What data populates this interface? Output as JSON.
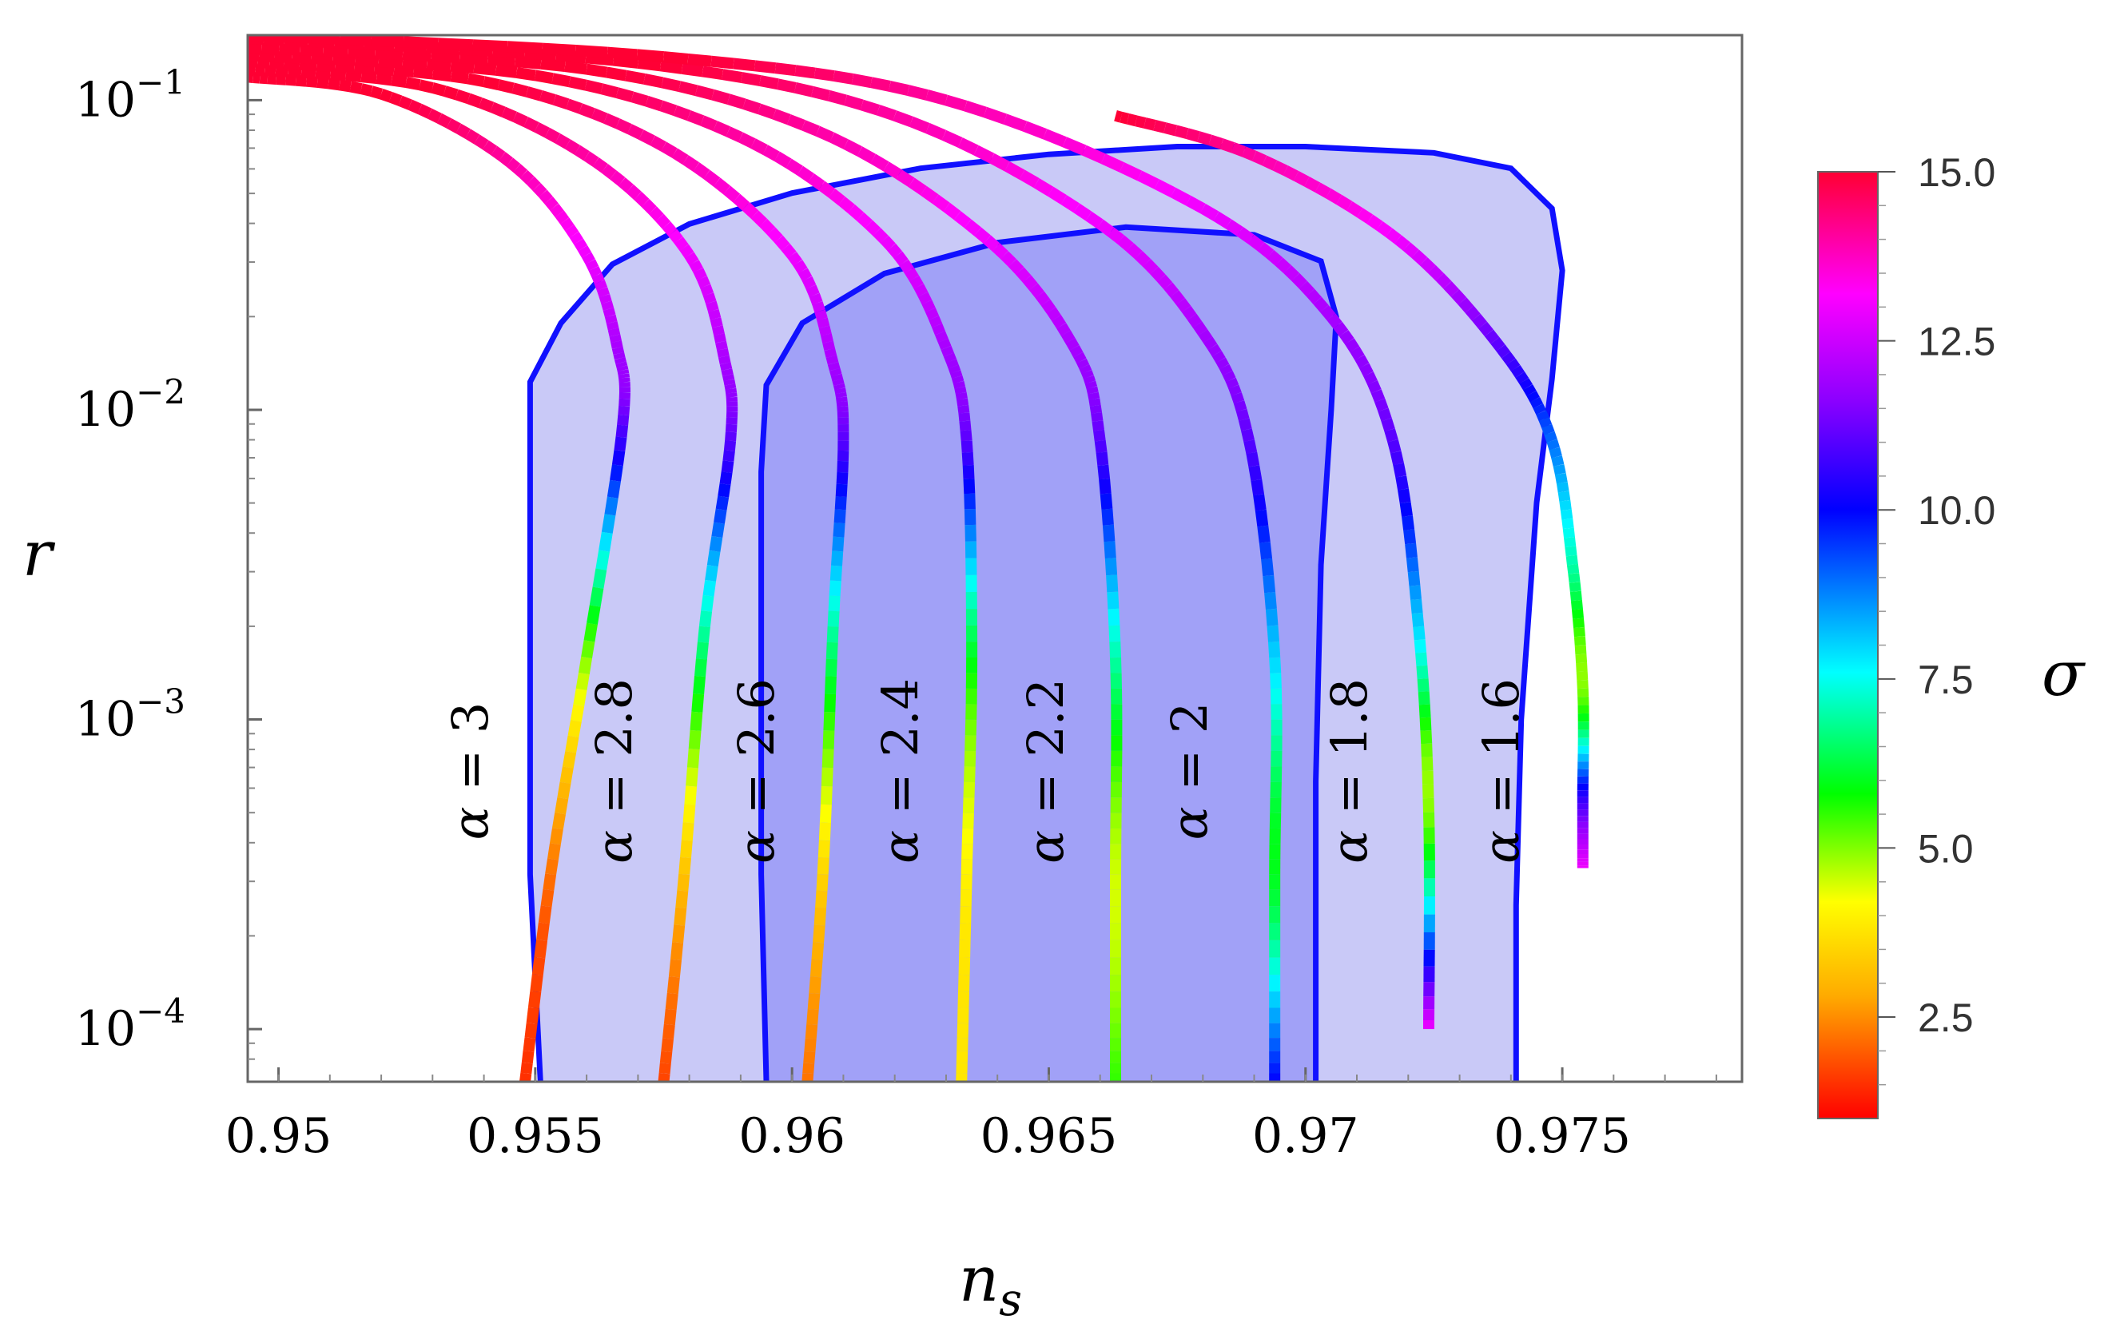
{
  "chart_data": {
    "type": "line",
    "xlabel": "n",
    "xlabel_sub": "s",
    "ylabel": "r",
    "xlim": [
      0.9494,
      0.9785
    ],
    "ylim_log10": [
      -4.17,
      -0.79
    ],
    "y_scale": "log",
    "x_ticks": [
      {
        "value": 0.95,
        "label": "0.95"
      },
      {
        "value": 0.955,
        "label": "0.955"
      },
      {
        "value": 0.96,
        "label": "0.96"
      },
      {
        "value": 0.965,
        "label": "0.965"
      },
      {
        "value": 0.97,
        "label": "0.97"
      },
      {
        "value": 0.975,
        "label": "0.975"
      }
    ],
    "y_ticks": [
      {
        "exp": -1,
        "base": "10",
        "sup": "−1"
      },
      {
        "exp": -2,
        "base": "10",
        "sup": "−2"
      },
      {
        "exp": -3,
        "base": "10",
        "sup": "−3"
      },
      {
        "exp": -4,
        "base": "10",
        "sup": "−4"
      }
    ],
    "contours": [
      {
        "name": "outer",
        "fill": "#c9c9f7",
        "stroke": "#1010ff",
        "points": [
          [
            0.9551,
            -4.17
          ],
          [
            0.9549,
            -3.5
          ],
          [
            0.9549,
            -2.8
          ],
          [
            0.9549,
            -2.2
          ],
          [
            0.9549,
            -1.91
          ],
          [
            0.9555,
            -1.72
          ],
          [
            0.9565,
            -1.53
          ],
          [
            0.958,
            -1.4
          ],
          [
            0.96,
            -1.3
          ],
          [
            0.9625,
            -1.22
          ],
          [
            0.965,
            -1.175
          ],
          [
            0.9675,
            -1.15
          ],
          [
            0.97,
            -1.15
          ],
          [
            0.9725,
            -1.17
          ],
          [
            0.974,
            -1.22
          ],
          [
            0.9748,
            -1.35
          ],
          [
            0.975,
            -1.55
          ],
          [
            0.9748,
            -1.9
          ],
          [
            0.9745,
            -2.3
          ],
          [
            0.9742,
            -3.0
          ],
          [
            0.9741,
            -3.6
          ],
          [
            0.9741,
            -4.17
          ]
        ]
      },
      {
        "name": "inner",
        "fill": "#a1a1f7",
        "stroke": "#1010ff",
        "points": [
          [
            0.9595,
            -4.17
          ],
          [
            0.9594,
            -3.5
          ],
          [
            0.9594,
            -2.8
          ],
          [
            0.9594,
            -2.2
          ],
          [
            0.9595,
            -1.92
          ],
          [
            0.9602,
            -1.72
          ],
          [
            0.9618,
            -1.56
          ],
          [
            0.964,
            -1.46
          ],
          [
            0.9665,
            -1.41
          ],
          [
            0.969,
            -1.435
          ],
          [
            0.9703,
            -1.52
          ],
          [
            0.9706,
            -1.7
          ],
          [
            0.9705,
            -2.0
          ],
          [
            0.9703,
            -2.5
          ],
          [
            0.9702,
            -3.2
          ],
          [
            0.9702,
            -4.17
          ]
        ]
      }
    ],
    "sigma_range": [
      1,
      15
    ],
    "series": [
      {
        "label_prefix": "α",
        "label_value": "3",
        "points": [
          [
            0.9494,
            -0.925,
            15
          ],
          [
            0.952,
            -0.98,
            15
          ],
          [
            0.9545,
            -1.2,
            14
          ],
          [
            0.956,
            -1.5,
            13
          ],
          [
            0.9566,
            -1.8,
            12
          ],
          [
            0.9567,
            -2.05,
            11
          ],
          [
            0.956,
            -2.8,
            5
          ],
          [
            0.9553,
            -3.5,
            2.2
          ],
          [
            0.9548,
            -4.17,
            1.5
          ]
        ]
      },
      {
        "label_prefix": "α",
        "label_value": "2.8",
        "points": [
          [
            0.9494,
            -0.9,
            15
          ],
          [
            0.953,
            -0.96,
            15
          ],
          [
            0.956,
            -1.18,
            14
          ],
          [
            0.958,
            -1.5,
            13
          ],
          [
            0.9587,
            -1.85,
            12
          ],
          [
            0.9588,
            -2.1,
            11
          ],
          [
            0.9583,
            -2.7,
            7
          ],
          [
            0.9579,
            -3.5,
            3.2
          ],
          [
            0.9575,
            -4.17,
            1.7
          ]
        ]
      },
      {
        "label_prefix": "α",
        "label_value": "2.6",
        "points": [
          [
            0.9494,
            -0.875,
            15
          ],
          [
            0.954,
            -0.94,
            15
          ],
          [
            0.9575,
            -1.15,
            14
          ],
          [
            0.96,
            -1.5,
            13
          ],
          [
            0.9608,
            -1.85,
            12
          ],
          [
            0.961,
            -2.1,
            11
          ],
          [
            0.9608,
            -2.7,
            7
          ],
          [
            0.9606,
            -3.5,
            3.5
          ],
          [
            0.9603,
            -4.17,
            2.2
          ]
        ]
      },
      {
        "label_prefix": "α",
        "label_value": "2.4",
        "points": [
          [
            0.9494,
            -0.855,
            15
          ],
          [
            0.955,
            -0.92,
            15
          ],
          [
            0.959,
            -1.12,
            14
          ],
          [
            0.9618,
            -1.45,
            13
          ],
          [
            0.963,
            -1.8,
            12
          ],
          [
            0.9634,
            -2.1,
            11
          ],
          [
            0.9635,
            -2.8,
            6
          ],
          [
            0.9634,
            -3.5,
            4
          ],
          [
            0.9633,
            -4.17,
            3.8
          ]
        ]
      },
      {
        "label_prefix": "α",
        "label_value": "2.2",
        "points": [
          [
            0.9494,
            -0.83,
            15
          ],
          [
            0.956,
            -0.9,
            15
          ],
          [
            0.9605,
            -1.1,
            14
          ],
          [
            0.9638,
            -1.45,
            13
          ],
          [
            0.9655,
            -1.8,
            12
          ],
          [
            0.966,
            -2.1,
            11
          ],
          [
            0.9663,
            -2.8,
            7
          ],
          [
            0.9663,
            -3.5,
            4.5
          ],
          [
            0.9663,
            -4.17,
            5.5
          ]
        ]
      },
      {
        "label_prefix": "α",
        "label_value": "2",
        "points": [
          [
            0.9494,
            -0.8,
            15
          ],
          [
            0.957,
            -0.88,
            15
          ],
          [
            0.962,
            -1.05,
            14
          ],
          [
            0.966,
            -1.4,
            13
          ],
          [
            0.968,
            -1.75,
            12
          ],
          [
            0.9689,
            -2.1,
            11
          ],
          [
            0.9694,
            -2.8,
            8
          ],
          [
            0.9694,
            -3.5,
            6
          ],
          [
            0.9694,
            -4.17,
            10
          ]
        ]
      },
      {
        "label_prefix": "α",
        "label_value": "1.8",
        "points": [
          [
            0.9494,
            -0.79,
            15
          ],
          [
            0.9575,
            -0.86,
            15
          ],
          [
            0.963,
            -1.0,
            14
          ],
          [
            0.968,
            -1.35,
            13
          ],
          [
            0.9705,
            -1.7,
            12
          ],
          [
            0.9717,
            -2.1,
            11
          ],
          [
            0.9722,
            -2.7,
            8
          ],
          [
            0.9724,
            -3.3,
            5
          ],
          [
            0.9724,
            -4.0,
            13
          ]
        ]
      },
      {
        "label_prefix": "α",
        "label_value": "1.6",
        "points": [
          [
            0.9663,
            -1.05,
            15
          ],
          [
            0.969,
            -1.18,
            14
          ],
          [
            0.9718,
            -1.45,
            13
          ],
          [
            0.9738,
            -1.8,
            11
          ],
          [
            0.9748,
            -2.1,
            9
          ],
          [
            0.9752,
            -2.5,
            7
          ],
          [
            0.9754,
            -2.9,
            5
          ],
          [
            0.9754,
            -3.25,
            10.5
          ],
          [
            0.9754,
            -3.48,
            13
          ]
        ]
      }
    ],
    "colorbar": {
      "label": "σ",
      "min": 1,
      "max": 15,
      "ticks": [
        {
          "value": 15,
          "label": "15.0"
        },
        {
          "value": 12.5,
          "label": "12.5"
        },
        {
          "value": 10,
          "label": "10.0"
        },
        {
          "value": 7.5,
          "label": "7.5"
        },
        {
          "value": 5,
          "label": "5.0"
        },
        {
          "value": 2.5,
          "label": "2.5"
        }
      ],
      "gradient": [
        {
          "sigma": 1,
          "color": "#ff0000"
        },
        {
          "sigma": 2.8,
          "color": "#ffaa00"
        },
        {
          "sigma": 4.2,
          "color": "#ffff00"
        },
        {
          "sigma": 5.8,
          "color": "#00ff00"
        },
        {
          "sigma": 7.6,
          "color": "#00ffff"
        },
        {
          "sigma": 10,
          "color": "#0000ff"
        },
        {
          "sigma": 11.6,
          "color": "#8a00ff"
        },
        {
          "sigma": 13.2,
          "color": "#ff00ff"
        },
        {
          "sigma": 15,
          "color": "#ff0033"
        }
      ]
    }
  }
}
